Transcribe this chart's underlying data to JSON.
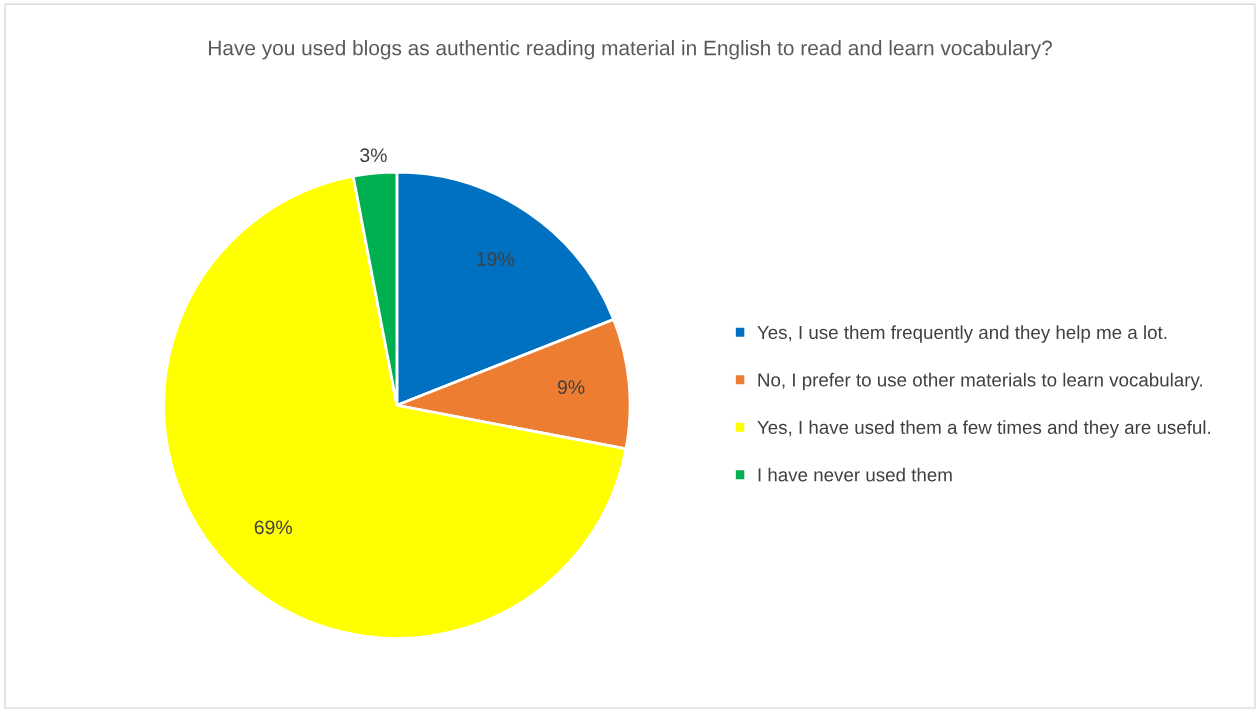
{
  "chart_data": {
    "type": "pie",
    "title": "Have you used blogs as authentic reading material in English to read and learn vocabulary?",
    "categories": [
      "Yes, I use them frequently and they help me a lot.",
      "No, I prefer to use other materials to learn vocabulary.",
      "Yes, I have used them a few times and they are useful.",
      "I have never used them"
    ],
    "values": [
      19,
      9,
      69,
      3
    ],
    "colors": [
      "#0070c0",
      "#ed7d31",
      "#ffff00",
      "#00b050"
    ],
    "value_labels": [
      "19%",
      "9%",
      "69%",
      "3%"
    ],
    "legend": "right"
  }
}
